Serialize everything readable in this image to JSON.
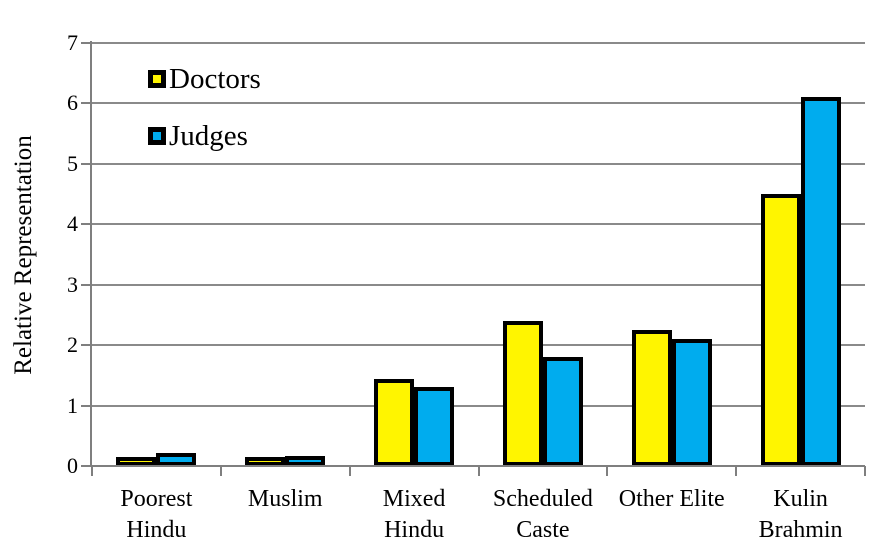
{
  "chart_data": {
    "type": "bar",
    "title": "",
    "xlabel": "",
    "ylabel": "Relative Representation",
    "ylim": [
      0,
      7
    ],
    "ytick_step": 1,
    "grid": true,
    "legend_position": "top-left-inside",
    "categories": [
      "Poorest\nHindu",
      "Muslim",
      "Mixed\nHindu",
      "Scheduled\nCaste",
      "Other Elite",
      "Kulin\nBrahmin"
    ],
    "series": [
      {
        "name": "Doctors",
        "color": "#FFF500",
        "values": [
          0.07,
          0.11,
          1.4,
          2.37,
          2.21,
          4.46
        ]
      },
      {
        "name": "Judges",
        "color": "#00ACEE",
        "values": [
          0.18,
          0.13,
          1.28,
          1.77,
          2.07,
          6.07
        ]
      }
    ],
    "colors": {
      "bar_border": "#000000",
      "gridline": "#8A8A8A",
      "axis": "#7F7F7F",
      "text": "#000000",
      "background": "#FFFFFF"
    }
  }
}
